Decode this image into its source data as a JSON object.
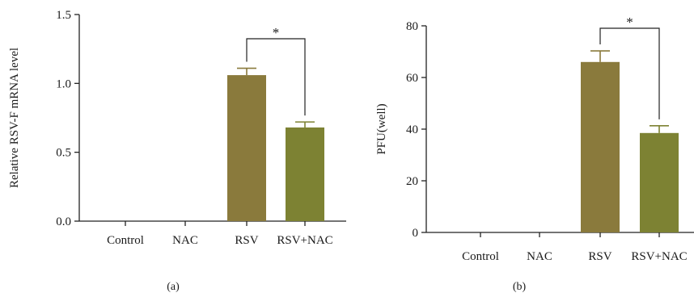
{
  "chart_data": [
    {
      "type": "bar",
      "panel_label": "(a)",
      "title": "",
      "xlabel": "",
      "ylabel": "Relative RSV-F mRNA level",
      "ylim": [
        0,
        1.5
      ],
      "yticks": [
        "0.0",
        "0.5",
        "1.0",
        "1.5"
      ],
      "ytick_values": [
        0,
        0.5,
        1.0,
        1.5
      ],
      "categories": [
        "Control",
        "NAC",
        "RSV",
        "RSV+NAC"
      ],
      "values": [
        0,
        0,
        1.06,
        0.68
      ],
      "errors": [
        0,
        0,
        0.05,
        0.04
      ],
      "bar_colors": [
        "#8a7a3c",
        "#7d8233",
        "#8a7a3c",
        "#7d8233"
      ],
      "significance": {
        "from": "RSV",
        "to": "RSV+NAC",
        "label": "*"
      },
      "grid": false
    },
    {
      "type": "bar",
      "panel_label": "(b)",
      "title": "",
      "xlabel": "",
      "ylabel": "PFU(well)",
      "ylim": [
        0,
        80
      ],
      "yticks": [
        "0",
        "20",
        "40",
        "60",
        "80"
      ],
      "ytick_values": [
        0,
        20,
        40,
        60,
        80
      ],
      "categories": [
        "Control",
        "NAC",
        "RSV",
        "RSV+NAC"
      ],
      "values": [
        0,
        0,
        66,
        38.5
      ],
      "errors": [
        0,
        0,
        4.3,
        2.8
      ],
      "bar_colors": [
        "#8a7a3c",
        "#7d8233",
        "#8a7a3c",
        "#7d8233"
      ],
      "significance": {
        "from": "RSV",
        "to": "RSV+NAC",
        "label": "*"
      },
      "grid": false
    }
  ]
}
